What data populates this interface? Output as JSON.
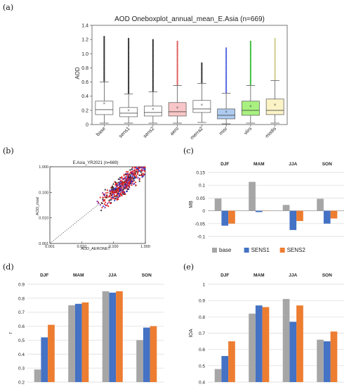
{
  "panel_labels": {
    "a": "(a)",
    "b": "(b)",
    "c": "(c)",
    "d": "(d)",
    "e": "(e)"
  },
  "colors": {
    "base": "#a6a6a6",
    "sens1": "#4472c4",
    "sens2": "#ed7d31"
  },
  "chart_data": [
    {
      "id": "a",
      "type": "boxplot",
      "title": "AOD Oneboxplot_annual_mean_E.Asia (n=669)",
      "ylabel": "AOD",
      "ylim": [
        0,
        1.4
      ],
      "yticks": [
        "0",
        "0.2",
        "0.4",
        "0.6",
        "0.8",
        "1.0",
        "1.2",
        "1.4"
      ],
      "categories": [
        "base",
        "sens1",
        "sens2",
        "aero",
        "merra2",
        "misr",
        "viirs",
        "modis"
      ],
      "box_fill": [
        "#ffffff",
        "#ffffff",
        "#ffffff",
        "#f8c6c6",
        "#ffffff",
        "#aecbef",
        "#a8f080",
        "#fbf3c6"
      ],
      "outlier_color": [
        "#333333",
        "#333333",
        "#333333",
        "#e06060",
        "#333333",
        "#5566e0",
        "#3fbf3f",
        "#cccc88"
      ],
      "stats": [
        {
          "min": 0.02,
          "q1": 0.14,
          "median": 0.21,
          "mean": 0.3,
          "q3": 0.33,
          "max": 0.6,
          "outlier_top": 1.25
        },
        {
          "min": 0.02,
          "q1": 0.11,
          "median": 0.16,
          "mean": 0.2,
          "q3": 0.24,
          "max": 0.43,
          "outlier_top": 1.22
        },
        {
          "min": 0.02,
          "q1": 0.12,
          "median": 0.17,
          "mean": 0.22,
          "q3": 0.26,
          "max": 0.46,
          "outlier_top": 1.2
        },
        {
          "min": 0.02,
          "q1": 0.12,
          "median": 0.18,
          "mean": 0.24,
          "q3": 0.31,
          "max": 0.55,
          "outlier_top": 1.18
        },
        {
          "min": 0.03,
          "q1": 0.17,
          "median": 0.22,
          "mean": 0.28,
          "q3": 0.34,
          "max": 0.58,
          "outlier_top": 0.88
        },
        {
          "min": 0.01,
          "q1": 0.08,
          "median": 0.13,
          "mean": 0.18,
          "q3": 0.22,
          "max": 0.44,
          "outlier_top": 1.08
        },
        {
          "min": 0.02,
          "q1": 0.13,
          "median": 0.2,
          "mean": 0.26,
          "q3": 0.33,
          "max": 0.55,
          "outlier_top": 1.18
        },
        {
          "min": 0.02,
          "q1": 0.14,
          "median": 0.2,
          "mean": 0.28,
          "q3": 0.36,
          "max": 0.62,
          "outlier_top": 1.22
        }
      ]
    },
    {
      "id": "b",
      "type": "scatter",
      "title": "E.Asia_YR2021 (n=669)",
      "xlabel": "AOD_AERONET",
      "ylabel": "AOD_mod",
      "scale": "log",
      "xlim": [
        0.001,
        1.0
      ],
      "ylim": [
        0.001,
        1.0
      ],
      "xticks": [
        "0.001",
        "0.010",
        "0.100",
        "1.000"
      ],
      "yticks": [
        "0.001",
        "0.010",
        "0.100",
        "1.000"
      ]
    },
    {
      "id": "c",
      "type": "bar",
      "ylabel": "MB",
      "categories": [
        "DJF",
        "MAM",
        "JJA",
        "SON"
      ],
      "ylim": [
        -0.1,
        0.15
      ],
      "yticks": [
        "-0.1",
        "-0.05",
        "0",
        "0.05",
        "0.1",
        "0.15"
      ],
      "series": [
        {
          "name": "base",
          "values": [
            0.048,
            0.113,
            0.023,
            0.047
          ]
        },
        {
          "name": "SENS1",
          "values": [
            -0.058,
            -0.005,
            -0.075,
            -0.05
          ]
        },
        {
          "name": "SENS2",
          "values": [
            -0.05,
            0.0,
            -0.04,
            -0.03
          ]
        }
      ],
      "legend_position": "bottom"
    },
    {
      "id": "d",
      "type": "bar",
      "ylabel": "r",
      "categories": [
        "DJF",
        "MAM",
        "JJA",
        "SON"
      ],
      "ylim": [
        0.2,
        0.9
      ],
      "yticks": [
        "0.2",
        "0.3",
        "0.4",
        "0.5",
        "0.6",
        "0.7",
        "0.8",
        "0.9"
      ],
      "series": [
        {
          "name": "base",
          "values": [
            0.29,
            0.75,
            0.85,
            0.5
          ]
        },
        {
          "name": "SENS1",
          "values": [
            0.52,
            0.76,
            0.84,
            0.59
          ]
        },
        {
          "name": "SENS2",
          "values": [
            0.61,
            0.77,
            0.85,
            0.6
          ]
        }
      ]
    },
    {
      "id": "e",
      "type": "bar",
      "ylabel": "IOA",
      "categories": [
        "DJF",
        "MAM",
        "JJA",
        "SON"
      ],
      "ylim": [
        0.4,
        1.0
      ],
      "yticks": [
        "0.4",
        "0.5",
        "0.6",
        "0.7",
        "0.8",
        "0.9",
        "1"
      ],
      "series": [
        {
          "name": "base",
          "values": [
            0.48,
            0.82,
            0.91,
            0.66
          ]
        },
        {
          "name": "SENS1",
          "values": [
            0.56,
            0.87,
            0.77,
            0.65
          ]
        },
        {
          "name": "SENS2",
          "values": [
            0.65,
            0.86,
            0.87,
            0.71
          ]
        }
      ]
    }
  ]
}
